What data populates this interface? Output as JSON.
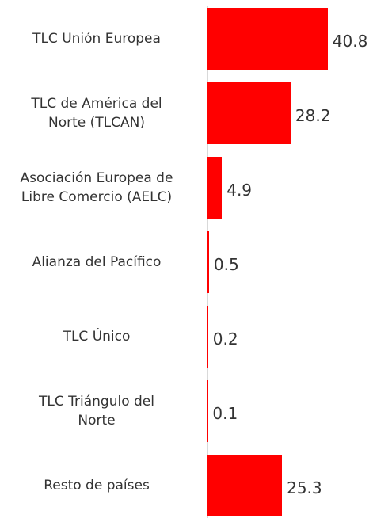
{
  "chart_data": {
    "type": "bar",
    "orientation": "horizontal",
    "categories": [
      "TLC Unión Europea",
      "TLC de América del\nNorte (TLCAN)",
      "Asociación Europea de\nLibre Comercio (AELC)",
      "Alianza del Pacífico",
      "TLC  Único",
      "TLC Triángulo del\nNorte",
      "Resto de países"
    ],
    "values": [
      40.8,
      28.2,
      4.9,
      0.5,
      0.2,
      0.1,
      25.3
    ],
    "color": "#ff0000",
    "xlim": [
      0,
      50
    ]
  }
}
